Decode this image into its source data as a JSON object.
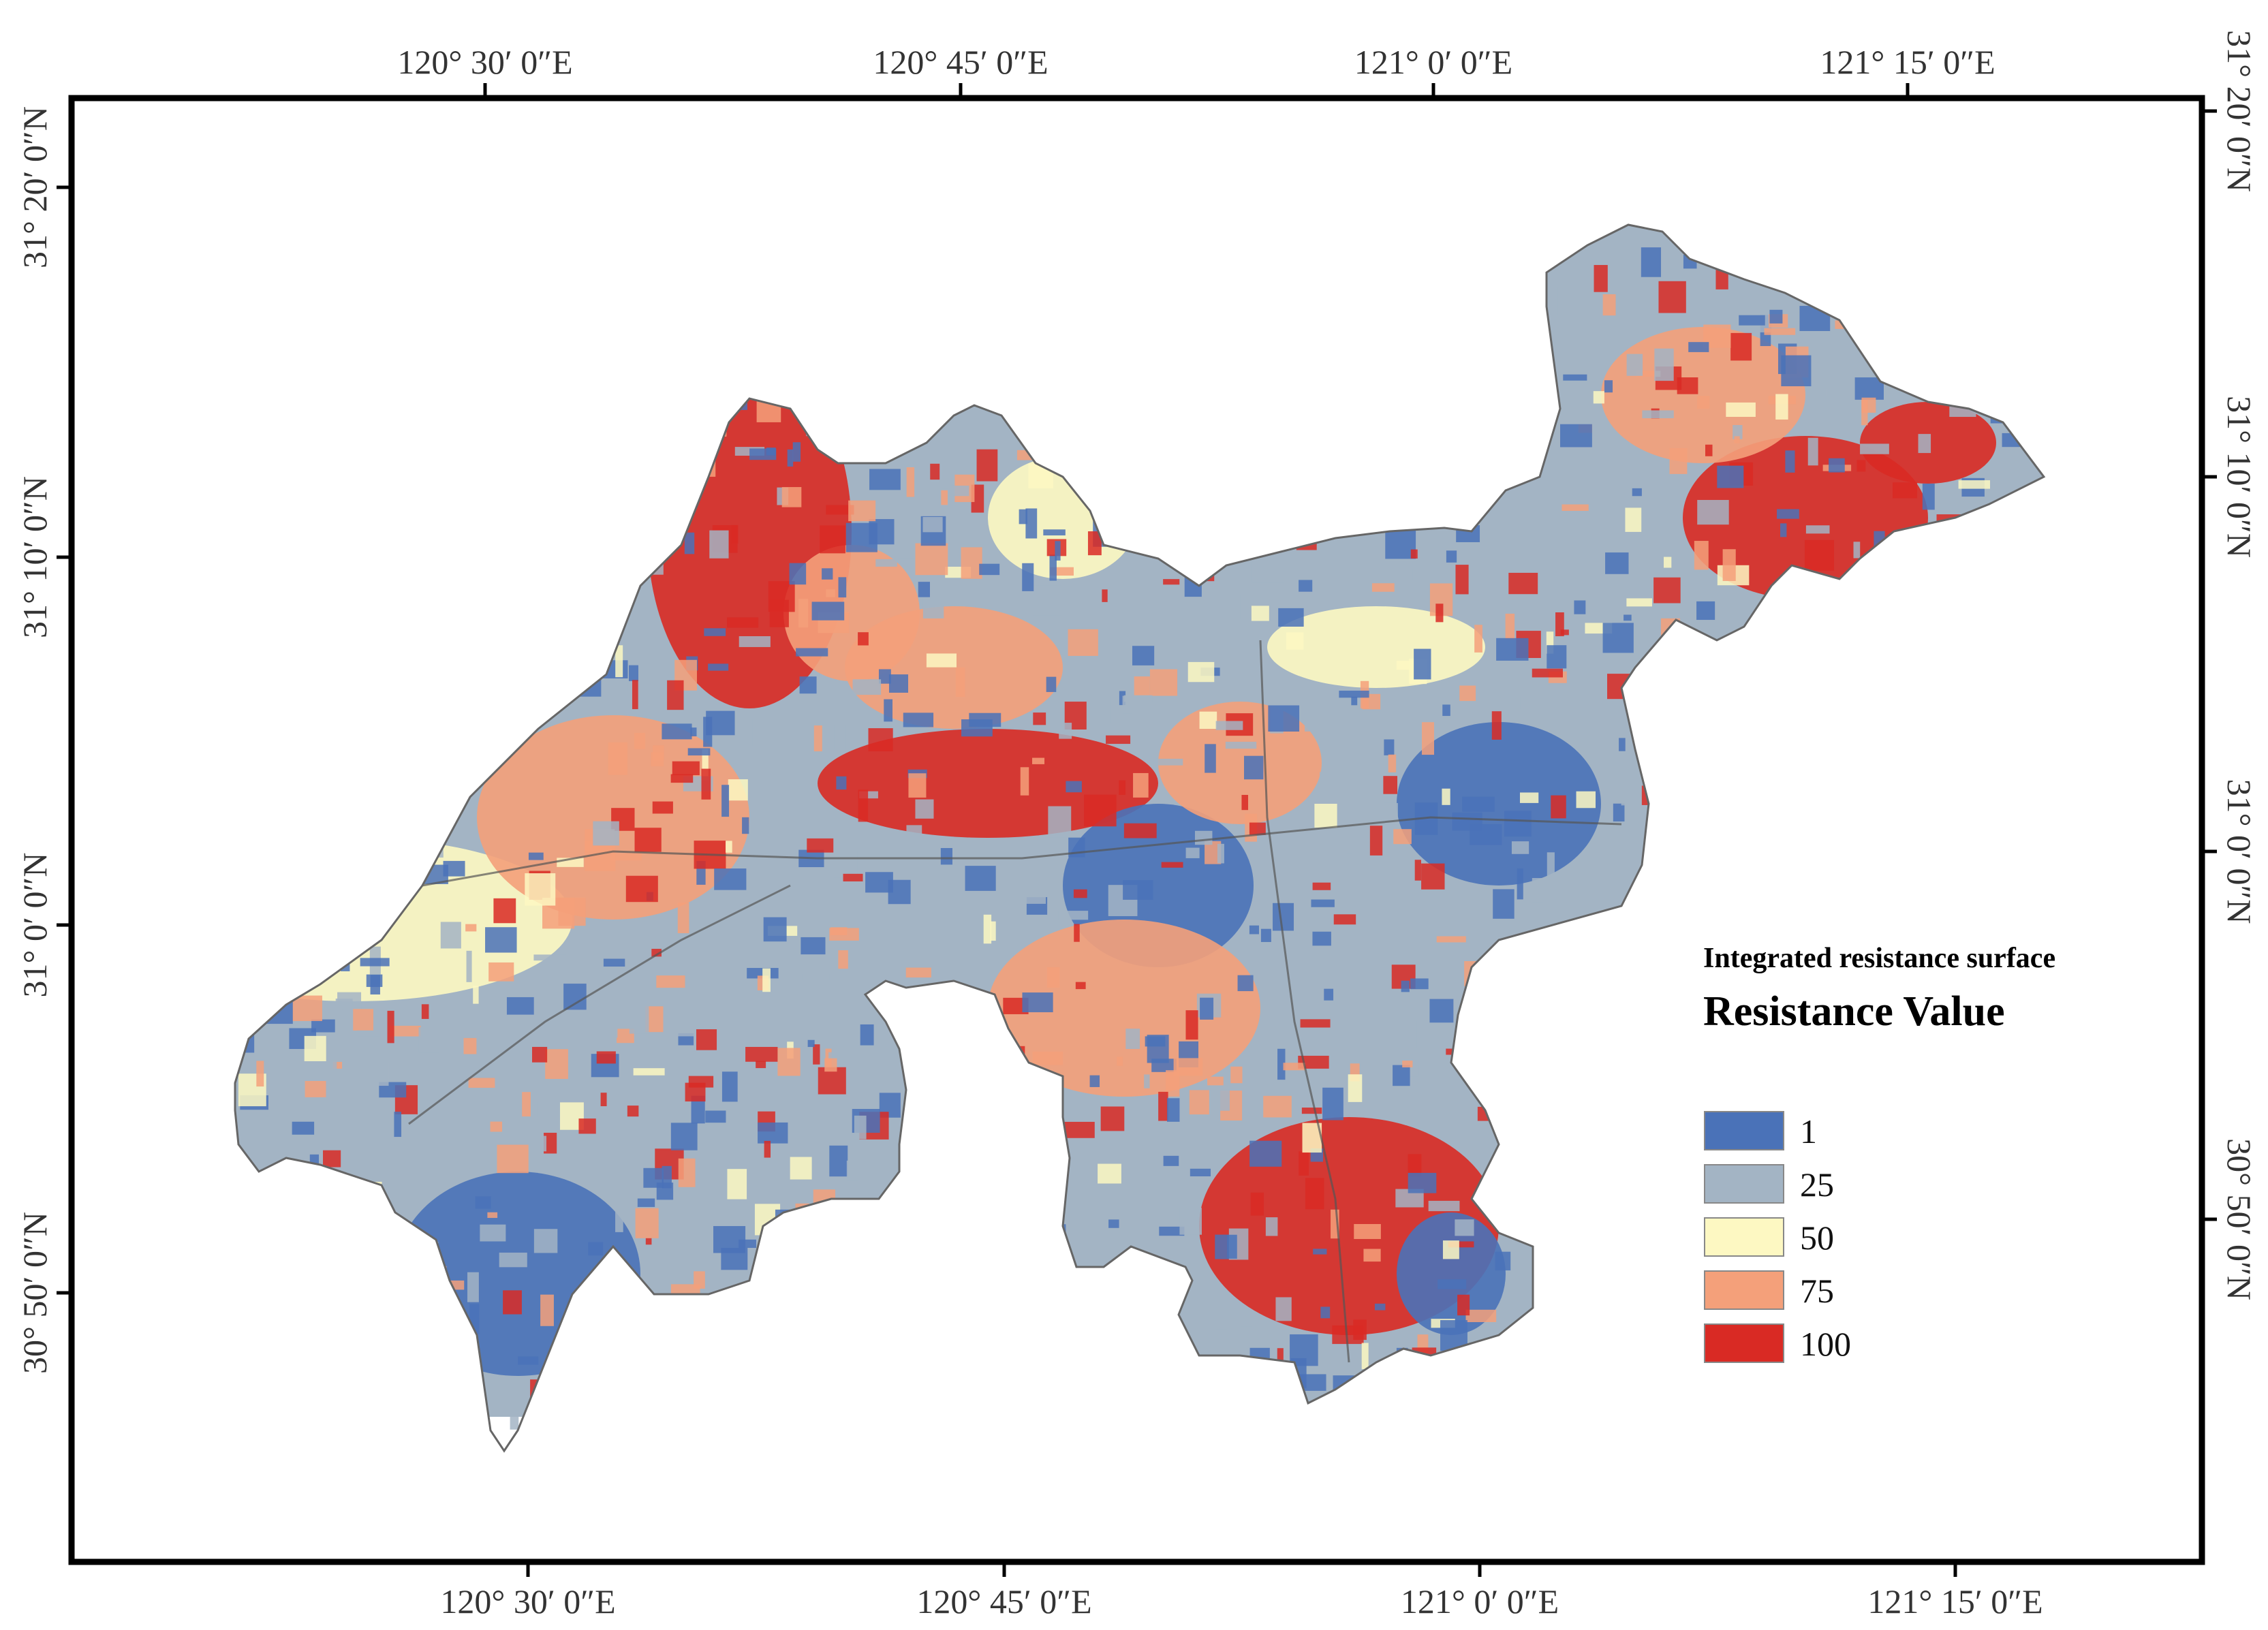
{
  "map": {
    "top_lon_labels": [
      "120° 30′ 0″E",
      "120° 45′ 0″E",
      "121° 0′ 0″E",
      "121° 15′ 0″E"
    ],
    "bottom_lon_labels": [
      "120° 30′ 0″E",
      "120° 45′ 0″E",
      "121° 0′ 0″E",
      "121° 15′ 0″E"
    ],
    "left_lat_labels": [
      "31° 20′ 0″N",
      "31° 10′ 0″N",
      "31° 0′ 0″N",
      "30° 50′ 0″N"
    ],
    "right_lat_labels": [
      "31° 20′ 0″N",
      "31° 10′ 0″N",
      "31° 0′ 0″N",
      "30° 50′ 0″N"
    ]
  },
  "legend": {
    "title": "Integrated resistance surface",
    "subtitle": "Resistance Value",
    "items": [
      {
        "label": "1",
        "color": "#4a72b8"
      },
      {
        "label": "25",
        "color": "#a3b4c4"
      },
      {
        "label": "50",
        "color": "#fdf8c2"
      },
      {
        "label": "75",
        "color": "#f4a07a"
      },
      {
        "label": "100",
        "color": "#d92a24"
      }
    ]
  },
  "colors": {
    "class_1": "#4a72b8",
    "class_25": "#a3b4c4",
    "class_50": "#fdf8c2",
    "class_75": "#f4a07a",
    "class_100": "#d92a24"
  }
}
